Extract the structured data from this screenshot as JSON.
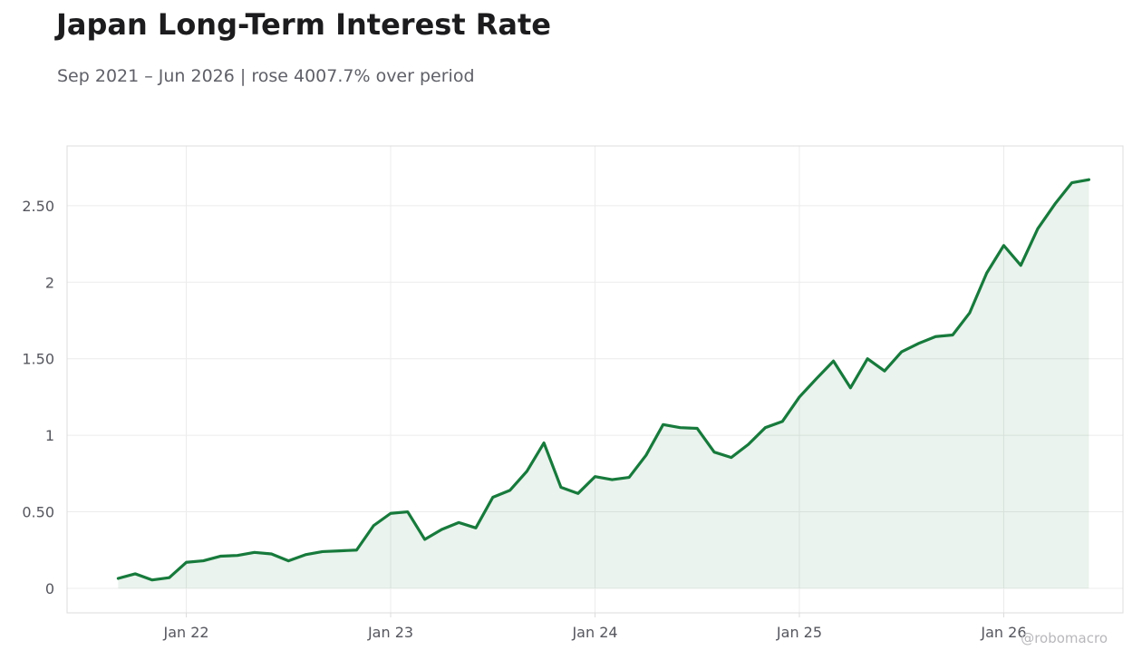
{
  "title": "Japan Long-Term Interest Rate",
  "subtitle": "Sep 2021 – Jun 2026 | rose 4007.7% over period",
  "watermark": "@robomacro",
  "colors": {
    "line": "#177a3c",
    "fill": "#177a3c",
    "grid": "#ececec",
    "frame": "#dcdcdc"
  },
  "chart_data": {
    "type": "area",
    "x": [
      "2021-09",
      "2021-10",
      "2021-11",
      "2021-12",
      "2022-01",
      "2022-02",
      "2022-03",
      "2022-04",
      "2022-05",
      "2022-06",
      "2022-07",
      "2022-08",
      "2022-09",
      "2022-10",
      "2022-11",
      "2022-12",
      "2023-01",
      "2023-02",
      "2023-03",
      "2023-04",
      "2023-05",
      "2023-06",
      "2023-07",
      "2023-08",
      "2023-09",
      "2023-10",
      "2023-11",
      "2023-12",
      "2024-01",
      "2024-02",
      "2024-03",
      "2024-04",
      "2024-05",
      "2024-06",
      "2024-07",
      "2024-08",
      "2024-09",
      "2024-10",
      "2024-11",
      "2024-12",
      "2025-01",
      "2025-02",
      "2025-03",
      "2025-04",
      "2025-05",
      "2025-06",
      "2025-07",
      "2025-08",
      "2025-09",
      "2025-10",
      "2025-11",
      "2025-12",
      "2026-01",
      "2026-02",
      "2026-03",
      "2026-04",
      "2026-05",
      "2026-06"
    ],
    "values": [
      0.065,
      0.095,
      0.055,
      0.07,
      0.17,
      0.18,
      0.21,
      0.215,
      0.235,
      0.225,
      0.18,
      0.22,
      0.24,
      0.245,
      0.25,
      0.41,
      0.49,
      0.5,
      0.32,
      0.385,
      0.43,
      0.395,
      0.595,
      0.64,
      0.765,
      0.95,
      0.66,
      0.62,
      0.73,
      0.71,
      0.725,
      0.87,
      1.07,
      1.05,
      1.045,
      0.89,
      0.855,
      0.94,
      1.05,
      1.09,
      1.25,
      1.37,
      1.485,
      1.31,
      1.5,
      1.42,
      1.545,
      1.6,
      1.645,
      1.655,
      1.8,
      2.06,
      2.24,
      2.11,
      2.35,
      2.51,
      2.65,
      2.67
    ],
    "x_ticks": [
      "Jan 22",
      "Jan 23",
      "Jan 24",
      "Jan 25",
      "Jan 26"
    ],
    "y_ticks": [
      "0",
      "0.50",
      "1",
      "1.50",
      "2",
      "2.50"
    ],
    "ylim": [
      -0.16,
      2.89
    ],
    "xlim": [
      "2021-06",
      "2026-08"
    ],
    "grid": true,
    "legend": "none"
  }
}
